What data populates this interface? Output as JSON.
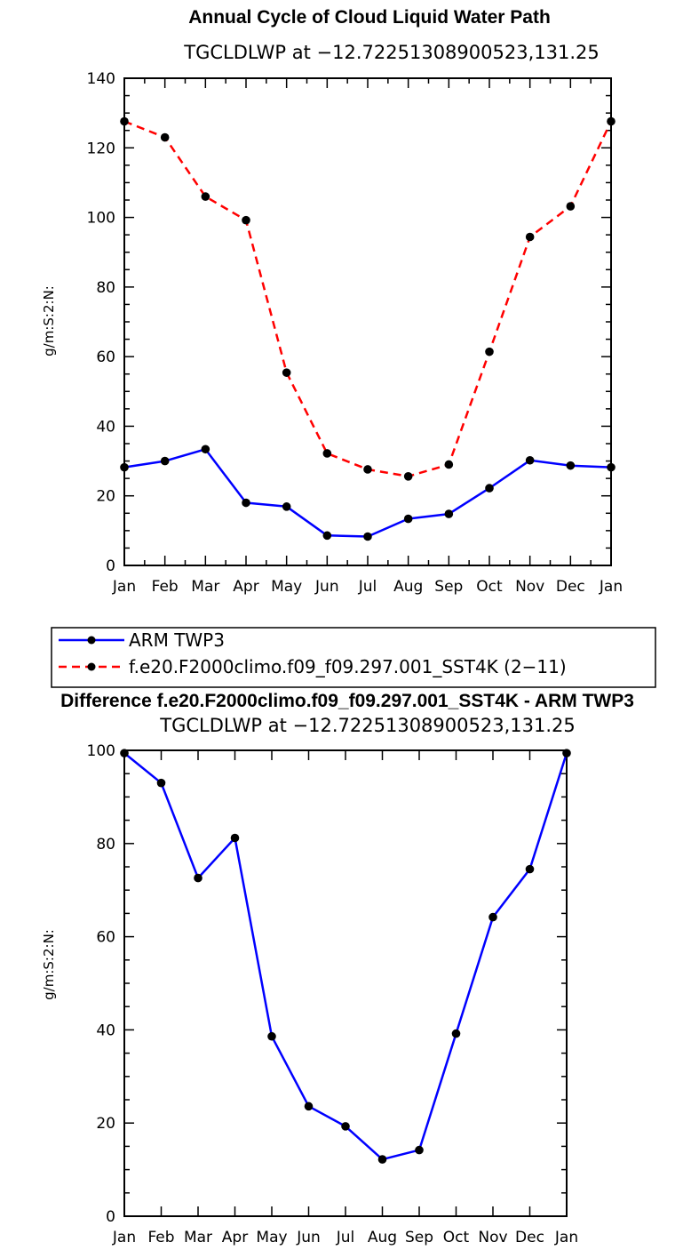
{
  "colors": {
    "series1": "#0000ff",
    "series2": "#ff0000",
    "marker": "#000000"
  },
  "chart_data": [
    {
      "type": "line",
      "title": "Annual Cycle of Cloud Liquid Water Path",
      "subtitle": "TGCLDLWP at −12.72251308900523,131.25",
      "ylabel": "g/m:S:2:N:",
      "ylim": [
        0,
        140
      ],
      "yticks": [
        "0",
        "20",
        "40",
        "60",
        "80",
        "100",
        "120",
        "140"
      ],
      "categories": [
        "Jan",
        "Feb",
        "Mar",
        "Apr",
        "May",
        "Jun",
        "Jul",
        "Aug",
        "Sep",
        "Oct",
        "Nov",
        "Dec",
        "Jan"
      ],
      "series": [
        {
          "name": "ARM TWP3",
          "style": "solid",
          "values": [
            28.2,
            30.0,
            33.4,
            18.0,
            16.9,
            8.6,
            8.3,
            13.4,
            14.8,
            22.2,
            30.2,
            28.7,
            28.2
          ]
        },
        {
          "name": "f.e20.F2000climo.f09_f09.297.001_SST4K (2−11)",
          "style": "dashed",
          "values": [
            127.6,
            123.0,
            106.0,
            99.2,
            55.4,
            32.2,
            27.6,
            25.6,
            29.0,
            61.4,
            94.4,
            103.2,
            127.6
          ]
        }
      ],
      "legend": [
        "ARM TWP3",
        "f.e20.F2000climo.f09_f09.297.001_SST4K (2−11)"
      ]
    },
    {
      "type": "line",
      "title": "Difference f.e20.F2000climo.f09_f09.297.001_SST4K - ARM TWP3",
      "subtitle": "TGCLDLWP at −12.72251308900523,131.25",
      "ylabel": "g/m:S:2:N:",
      "ylim": [
        0,
        100
      ],
      "yticks": [
        "0",
        "20",
        "40",
        "60",
        "80",
        "100"
      ],
      "categories": [
        "Jan",
        "Feb",
        "Mar",
        "Apr",
        "May",
        "Jun",
        "Jul",
        "Aug",
        "Sep",
        "Oct",
        "Nov",
        "Dec",
        "Jan"
      ],
      "series": [
        {
          "name": "Difference",
          "style": "solid",
          "values": [
            99.4,
            93.0,
            72.6,
            81.2,
            38.6,
            23.6,
            19.3,
            12.2,
            14.2,
            39.2,
            64.2,
            74.5,
            99.4
          ]
        }
      ]
    }
  ]
}
